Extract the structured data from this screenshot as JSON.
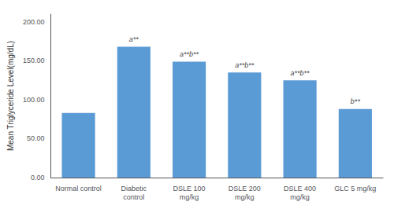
{
  "chart_data": {
    "type": "bar",
    "categories": [
      "Normal control",
      "Diabetic\ncontrol",
      "DSLE 100\nmg/kg",
      "DSLE 200\nmg/kg",
      "DSLE 400\nmg/kg",
      "GLC 5 mg/kg"
    ],
    "values": [
      83,
      168,
      149,
      135,
      125,
      88
    ],
    "color": "#5B9BD5",
    "ylabel": "Mean Triglyceride Level(mg/dL)",
    "ylim": [
      0,
      210
    ],
    "yticks": [
      {
        "value": 0,
        "label": "0.00"
      },
      {
        "value": 50,
        "label": "50.00"
      },
      {
        "value": 100,
        "label": "100.00"
      },
      {
        "value": 150,
        "label": "150.00"
      },
      {
        "value": 200,
        "label": "200.00"
      }
    ],
    "annotations": [
      null,
      "a**",
      "a**b**",
      "a**b**",
      "a**b**",
      "b**"
    ],
    "grid": false
  }
}
